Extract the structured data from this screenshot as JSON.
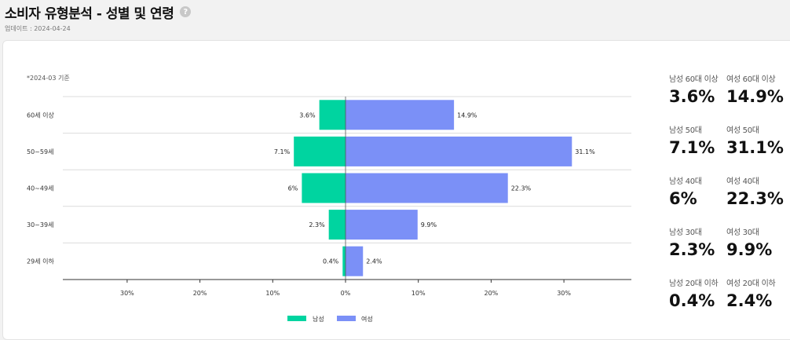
{
  "header": {
    "title": "소비자 유형분석 - 성별 및 연령",
    "help_icon": "question-circle-icon",
    "update_text": "업데이트 : 2024-04-24"
  },
  "chart_data": {
    "type": "bar",
    "orientation": "horizontal-diverging",
    "note": "*2024-03 기준",
    "categories": [
      "60세 이상",
      "50~59세",
      "40~49세",
      "30~39세",
      "29세 이하"
    ],
    "series": [
      {
        "name": "남성",
        "color": "#00d4a0",
        "values": [
          3.6,
          7.1,
          6,
          2.3,
          0.4
        ],
        "labels": [
          "3.6%",
          "7.1%",
          "6%",
          "2.3%",
          "0.4%"
        ]
      },
      {
        "name": "여성",
        "color": "#7b90f7",
        "values": [
          14.9,
          31.1,
          22.3,
          9.9,
          2.4
        ],
        "labels": [
          "14.9%",
          "31.1%",
          "22.3%",
          "9.9%",
          "2.4%"
        ]
      }
    ],
    "xlim": [
      -39,
      39
    ],
    "x_ticks": [
      -30,
      -20,
      -10,
      0,
      10,
      20,
      30
    ],
    "x_tick_labels": [
      "30%",
      "20%",
      "10%",
      "0%",
      "10%",
      "20%",
      "30%"
    ],
    "grid": "horizontal",
    "legend_position": "bottom-center"
  },
  "stats": [
    {
      "male_label": "남성 60대 이상",
      "male_value": "3.6%",
      "female_label": "여성 60대 이상",
      "female_value": "14.9%"
    },
    {
      "male_label": "남성 50대",
      "male_value": "7.1%",
      "female_label": "여성 50대",
      "female_value": "31.1%"
    },
    {
      "male_label": "남성 40대",
      "male_value": "6%",
      "female_label": "여성 40대",
      "female_value": "22.3%"
    },
    {
      "male_label": "남성 30대",
      "male_value": "2.3%",
      "female_label": "여성 30대",
      "female_value": "9.9%"
    },
    {
      "male_label": "남성 20대 이하",
      "male_value": "0.4%",
      "female_label": "여성 20대 이하",
      "female_value": "2.4%"
    }
  ]
}
